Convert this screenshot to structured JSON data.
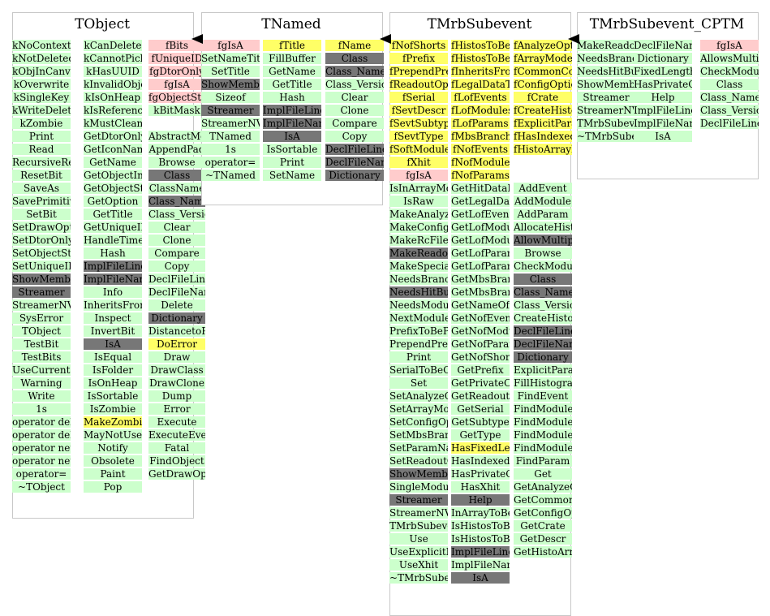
{
  "classes": [
    {
      "name": "TObject",
      "columns": [
        [
          [
            "kNoContextMenu",
            "g"
          ],
          [
            "kNotDeleted",
            "g"
          ],
          [
            "kObjInCanvas",
            "g"
          ],
          [
            "kOverwrite",
            "g"
          ],
          [
            "kSingleKey",
            "g"
          ],
          [
            "kWriteDelete",
            "g"
          ],
          [
            "kZombie",
            "g"
          ],
          [
            "Print",
            "g"
          ],
          [
            "Read",
            "g"
          ],
          [
            "RecursiveRemove",
            "g"
          ],
          [
            "ResetBit",
            "g"
          ],
          [
            "SaveAs",
            "g"
          ],
          [
            "SavePrimitive",
            "g"
          ],
          [
            "SetBit",
            "g"
          ],
          [
            "SetDrawOption",
            "g"
          ],
          [
            "SetDtorOnly",
            "g"
          ],
          [
            "SetObjectStat",
            "g"
          ],
          [
            "SetUniqueID",
            "g"
          ],
          [
            "ShowMembers",
            "k"
          ],
          [
            "Streamer",
            "k"
          ],
          [
            "StreamerNVirtual",
            "g"
          ],
          [
            "SysError",
            "g"
          ],
          [
            "TObject",
            "g"
          ],
          [
            "TestBit",
            "g"
          ],
          [
            "TestBits",
            "g"
          ],
          [
            "UseCurrentStyle",
            "g"
          ],
          [
            "Warning",
            "g"
          ],
          [
            "Write",
            "g"
          ],
          [
            "1s",
            "g"
          ],
          [
            "operator delete",
            "g"
          ],
          [
            "operator delete[]",
            "g"
          ],
          [
            "operator new",
            "g"
          ],
          [
            "operator new[]",
            "g"
          ],
          [
            "operator=",
            "g"
          ],
          [
            "~TObject",
            "g"
          ]
        ],
        [
          [
            "kCanDelete",
            "g"
          ],
          [
            "kCannotPick",
            "g"
          ],
          [
            "kHasUUID",
            "g"
          ],
          [
            "kInvalidObject",
            "g"
          ],
          [
            "kIsOnHeap",
            "g"
          ],
          [
            "kIsReferenced",
            "g"
          ],
          [
            "kMustCleanup",
            "g"
          ],
          [
            "GetDtorOnly",
            "g"
          ],
          [
            "GetIconName",
            "g"
          ],
          [
            "GetName",
            "g"
          ],
          [
            "GetObjectInfo",
            "g"
          ],
          [
            "GetObjectStat",
            "g"
          ],
          [
            "GetOption",
            "g"
          ],
          [
            "GetTitle",
            "g"
          ],
          [
            "GetUniqueID",
            "g"
          ],
          [
            "HandleTimer",
            "g"
          ],
          [
            "Hash",
            "g"
          ],
          [
            "ImplFileLine",
            "k"
          ],
          [
            "ImplFileName",
            "k"
          ],
          [
            "Info",
            "g"
          ],
          [
            "InheritsFrom",
            "g"
          ],
          [
            "Inspect",
            "g"
          ],
          [
            "InvertBit",
            "g"
          ],
          [
            "IsA",
            "k"
          ],
          [
            "IsEqual",
            "g"
          ],
          [
            "IsFolder",
            "g"
          ],
          [
            "IsOnHeap",
            "g"
          ],
          [
            "IsSortable",
            "g"
          ],
          [
            "IsZombie",
            "g"
          ],
          [
            "MakeZombie",
            "y"
          ],
          [
            "MayNotUse",
            "g"
          ],
          [
            "Notify",
            "g"
          ],
          [
            "Obsolete",
            "g"
          ],
          [
            "Paint",
            "g"
          ],
          [
            "Pop",
            "g"
          ]
        ],
        [
          [
            "fBits",
            "p"
          ],
          [
            "fUniqueID",
            "p"
          ],
          [
            "fgDtorOnly",
            "p"
          ],
          [
            "fgIsA",
            "p"
          ],
          [
            "fgObjectStat",
            "p"
          ],
          [
            "kBitMask",
            "g"
          ],
          [
            "",
            "w"
          ],
          [
            "AbstractMethod",
            "g"
          ],
          [
            "AppendPad",
            "g"
          ],
          [
            "Browse",
            "g"
          ],
          [
            "Class",
            "k"
          ],
          [
            "ClassName",
            "g"
          ],
          [
            "Class_Name",
            "k"
          ],
          [
            "Class_Version",
            "g"
          ],
          [
            "Clear",
            "g"
          ],
          [
            "Clone",
            "g"
          ],
          [
            "Compare",
            "g"
          ],
          [
            "Copy",
            "g"
          ],
          [
            "DeclFileLine",
            "g"
          ],
          [
            "DeclFileName",
            "g"
          ],
          [
            "Delete",
            "g"
          ],
          [
            "Dictionary",
            "k"
          ],
          [
            "DistancetoPrimitive",
            "g"
          ],
          [
            "DoError",
            "y"
          ],
          [
            "Draw",
            "g"
          ],
          [
            "DrawClass",
            "g"
          ],
          [
            "DrawClone",
            "g"
          ],
          [
            "Dump",
            "g"
          ],
          [
            "Error",
            "g"
          ],
          [
            "Execute",
            "g"
          ],
          [
            "ExecuteEvent",
            "g"
          ],
          [
            "Fatal",
            "g"
          ],
          [
            "FindObject",
            "g"
          ],
          [
            "GetDrawOption",
            "g"
          ]
        ]
      ]
    },
    {
      "name": "TNamed",
      "columns": [
        [
          [
            "fgIsA",
            "p"
          ],
          [
            "SetNameTitle",
            "g"
          ],
          [
            "SetTitle",
            "g"
          ],
          [
            "ShowMembers",
            "k"
          ],
          [
            "Sizeof",
            "g"
          ],
          [
            "Streamer",
            "k"
          ],
          [
            "StreamerNVirtual",
            "g"
          ],
          [
            "TNamed",
            "g"
          ],
          [
            "1s",
            "g"
          ],
          [
            "operator=",
            "g"
          ],
          [
            "~TNamed",
            "g"
          ]
        ],
        [
          [
            "fTitle",
            "y"
          ],
          [
            "FillBuffer",
            "g"
          ],
          [
            "GetName",
            "g"
          ],
          [
            "GetTitle",
            "g"
          ],
          [
            "Hash",
            "g"
          ],
          [
            "ImplFileLine",
            "k"
          ],
          [
            "ImplFileName",
            "k"
          ],
          [
            "IsA",
            "k"
          ],
          [
            "IsSortable",
            "g"
          ],
          [
            "Print",
            "g"
          ],
          [
            "SetName",
            "g"
          ]
        ],
        [
          [
            "fName",
            "y"
          ],
          [
            "Class",
            "k"
          ],
          [
            "Class_Name",
            "k"
          ],
          [
            "Class_Version",
            "g"
          ],
          [
            "Clear",
            "g"
          ],
          [
            "Clone",
            "g"
          ],
          [
            "Compare",
            "g"
          ],
          [
            "Copy",
            "g"
          ],
          [
            "DeclFileLine",
            "k"
          ],
          [
            "DeclFileName",
            "k"
          ],
          [
            "Dictionary",
            "k"
          ]
        ]
      ]
    },
    {
      "name": "TMrbSubevent",
      "columns": [
        [
          [
            "fNofShorts",
            "y"
          ],
          [
            "fPrefix",
            "y"
          ],
          [
            "fPrependPrefix",
            "y"
          ],
          [
            "fReadoutOptions",
            "y"
          ],
          [
            "fSerial",
            "y"
          ],
          [
            "fSevtDescr",
            "y"
          ],
          [
            "fSevtSubtype",
            "y"
          ],
          [
            "fSevtType",
            "y"
          ],
          [
            "fSoftModule",
            "y"
          ],
          [
            "fXhit",
            "y"
          ],
          [
            "fgIsA",
            "p"
          ],
          [
            "IsInArrayMode",
            "g"
          ],
          [
            "IsRaw",
            "g"
          ],
          [
            "MakeAnalyzeCode",
            "g"
          ],
          [
            "MakeConfigCode",
            "g"
          ],
          [
            "MakeRcFile",
            "g"
          ],
          [
            "MakeReadoutCode",
            "k"
          ],
          [
            "MakeSpecialAnalyzeCode",
            "g"
          ],
          [
            "NeedsBranchMode",
            "g"
          ],
          [
            "NeedsHitBuffer",
            "k"
          ],
          [
            "NeedsModulesToBeAssigned",
            "g"
          ],
          [
            "NextModule",
            "g"
          ],
          [
            "PrefixToBePrepended",
            "g"
          ],
          [
            "PrependPrefix",
            "g"
          ],
          [
            "Print",
            "g"
          ],
          [
            "SerialToBeCreated",
            "g"
          ],
          [
            "Set",
            "g"
          ],
          [
            "SetAnalyzeOptions",
            "g"
          ],
          [
            "SetArrayMode",
            "g"
          ],
          [
            "SetConfigOptions",
            "g"
          ],
          [
            "SetMbsBranch",
            "g"
          ],
          [
            "SetParamNames",
            "g"
          ],
          [
            "SetReadoutOptions",
            "g"
          ],
          [
            "ShowMembers",
            "k"
          ],
          [
            "SingleModuleOnly",
            "g"
          ],
          [
            "Streamer",
            "k"
          ],
          [
            "StreamerNVirtual",
            "g"
          ],
          [
            "TMrbSubevent",
            "g"
          ],
          [
            "Use",
            "g"
          ],
          [
            "UseExplicitParamNames",
            "g"
          ],
          [
            "UseXhit",
            "g"
          ],
          [
            "~TMrbSubevent",
            "g"
          ]
        ],
        [
          [
            "fHistosToBeAllocated",
            "y"
          ],
          [
            "fHistosToBeFilledIfTrue",
            "y"
          ],
          [
            "fInheritsFrom",
            "y"
          ],
          [
            "fLegalDataTypes",
            "y"
          ],
          [
            "fLofEvents",
            "y"
          ],
          [
            "fLofModules",
            "y"
          ],
          [
            "fLofParams",
            "y"
          ],
          [
            "fMbsBranch",
            "y"
          ],
          [
            "fNofEvents",
            "y"
          ],
          [
            "fNofModules",
            "y"
          ],
          [
            "fNofParams",
            "y"
          ],
          [
            "GetHitDataLength",
            "g"
          ],
          [
            "GetLegalDataTypes",
            "g"
          ],
          [
            "GetLofEvents",
            "g"
          ],
          [
            "GetLofModules",
            "g"
          ],
          [
            "GetLofModulesAsString",
            "g"
          ],
          [
            "GetLofParams",
            "g"
          ],
          [
            "GetLofParamsAsString",
            "g"
          ],
          [
            "GetMbsBranch",
            "g"
          ],
          [
            "GetMbsBranchName",
            "g"
          ],
          [
            "GetNameOfXhit",
            "g"
          ],
          [
            "GetNofEvents",
            "g"
          ],
          [
            "GetNofModules",
            "g"
          ],
          [
            "GetNofParams",
            "g"
          ],
          [
            "GetNofShorts",
            "g"
          ],
          [
            "GetPrefix",
            "g"
          ],
          [
            "GetPrivateCodeFile",
            "g"
          ],
          [
            "GetReadoutOptions",
            "g"
          ],
          [
            "GetSerial",
            "g"
          ],
          [
            "GetSubtype",
            "g"
          ],
          [
            "GetType",
            "g"
          ],
          [
            "HasFixedLengthFormat",
            "y"
          ],
          [
            "HasIndexedParams",
            "g"
          ],
          [
            "HasPrivateCode",
            "g"
          ],
          [
            "HasXhit",
            "g"
          ],
          [
            "Help",
            "k"
          ],
          [
            "InArrayToBeCreated",
            "g"
          ],
          [
            "IsHistosToBeAllocated",
            "g"
          ],
          [
            "IsHistosToBeFilledIfTrue",
            "g"
          ],
          [
            "ImplFileLine",
            "k"
          ],
          [
            "ImplFileName",
            "g"
          ],
          [
            "IsA",
            "k"
          ]
        ],
        [
          [
            "fAnalyzeOptions",
            "y"
          ],
          [
            "fArrayMode",
            "y"
          ],
          [
            "fCommonCodeFile",
            "y"
          ],
          [
            "fConfigOptions",
            "y"
          ],
          [
            "fCrate",
            "y"
          ],
          [
            "fCreateHistoArray",
            "y"
          ],
          [
            "fExplicitParamNames",
            "y"
          ],
          [
            "fHasIndexedParams",
            "y"
          ],
          [
            "fHistoArrayName",
            "y"
          ],
          [
            "",
            "w"
          ],
          [
            "",
            "w"
          ],
          [
            "AddEvent",
            "g"
          ],
          [
            "AddModule",
            "g"
          ],
          [
            "AddParam",
            "g"
          ],
          [
            "AllocateHistograms",
            "g"
          ],
          [
            "AllowMultipleModules",
            "k"
          ],
          [
            "Browse",
            "g"
          ],
          [
            "CheckModuleID",
            "g"
          ],
          [
            "Class",
            "k"
          ],
          [
            "Class_Name",
            "k"
          ],
          [
            "Class_Version",
            "g"
          ],
          [
            "CreateHistoArray",
            "g"
          ],
          [
            "DeclFileLine",
            "k"
          ],
          [
            "DeclFileName",
            "k"
          ],
          [
            "Dictionary",
            "k"
          ],
          [
            "ExplicitParamNamesToBeUsed",
            "g"
          ],
          [
            "FillHistogramsIfTrueHitOnly",
            "g"
          ],
          [
            "FindEvent",
            "g"
          ],
          [
            "FindModule",
            "g"
          ],
          [
            "FindModuleByID",
            "g"
          ],
          [
            "FindModuleBySerial",
            "g"
          ],
          [
            "FindModuleByType",
            "g"
          ],
          [
            "FindParam",
            "g"
          ],
          [
            "Get",
            "g"
          ],
          [
            "GetAnalyzeOptions",
            "g"
          ],
          [
            "GetCommonCodeFile",
            "g"
          ],
          [
            "GetConfigOptions",
            "g"
          ],
          [
            "GetCrate",
            "g"
          ],
          [
            "GetDescr",
            "g"
          ],
          [
            "GetHistoArrayName",
            "g"
          ]
        ]
      ]
    },
    {
      "name": "TMrbSubevent_CPTM",
      "columns": [
        [
          [
            "MakeReadoutCode",
            "g"
          ],
          [
            "NeedsBranchMode",
            "g"
          ],
          [
            "NeedsHitBuffer",
            "g"
          ],
          [
            "ShowMembers",
            "g"
          ],
          [
            "Streamer",
            "g"
          ],
          [
            "StreamerNVirtual",
            "g"
          ],
          [
            "TMrbSubevent_CPTM",
            "g"
          ],
          [
            "~TMrbSubevent_CPTM",
            "g"
          ]
        ],
        [
          [
            "DeclFileName",
            "g"
          ],
          [
            "Dictionary",
            "g"
          ],
          [
            "FixedLengthFormat",
            "g"
          ],
          [
            "HasPrivateCode",
            "g"
          ],
          [
            "Help",
            "g"
          ],
          [
            "ImplFileLine",
            "g"
          ],
          [
            "ImplFileName",
            "g"
          ],
          [
            "IsA",
            "g"
          ]
        ],
        [
          [
            "fgIsA",
            "p"
          ],
          [
            "AllowsMultipleModules",
            "g"
          ],
          [
            "CheckModuleID",
            "g"
          ],
          [
            "Class",
            "g"
          ],
          [
            "Class_Name",
            "g"
          ],
          [
            "Class_Version",
            "g"
          ],
          [
            "DeclFileLine",
            "g"
          ]
        ]
      ]
    }
  ],
  "colors": {
    "green": "#ccffcc",
    "pink": "#ffcccc",
    "yellow": "#ffff66",
    "gray": "#777777"
  }
}
